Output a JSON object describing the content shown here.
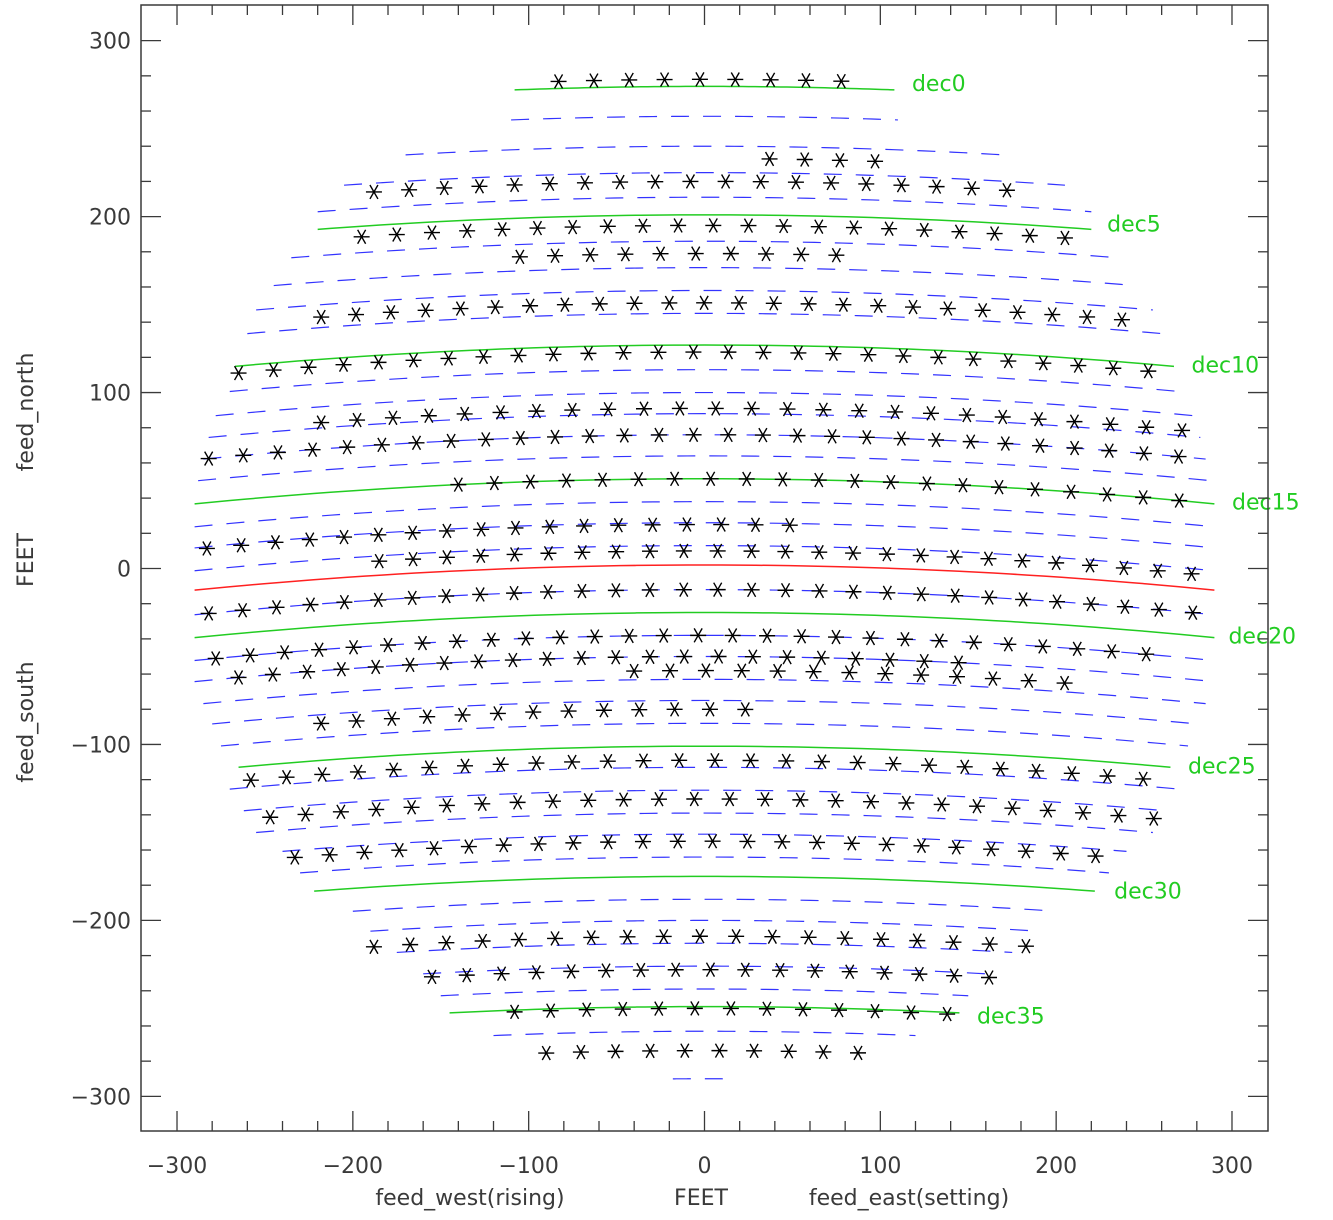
{
  "chart_data": {
    "type": "scatter",
    "xlim": [
      -320,
      320
    ],
    "ylim": [
      -320,
      320
    ],
    "x_ticks": [
      -300,
      -200,
      -100,
      0,
      100,
      200,
      300
    ],
    "y_ticks": [
      -300,
      -200,
      -100,
      0,
      100,
      200,
      300
    ],
    "x_tick_labels": [
      "−300",
      "−200",
      "−100",
      "0",
      "100",
      "200",
      "300"
    ],
    "y_tick_labels": [
      "−300",
      "−200",
      "−100",
      "0",
      "100",
      "200",
      "300"
    ],
    "xlabel": {
      "left": "feed_west(rising)",
      "center": "FEET",
      "right": "feed_east(setting)"
    },
    "ylabel": {
      "bottom": "feed_south",
      "center": "FEET",
      "top": "feed_north"
    },
    "colors": {
      "dec_curve": "#22cc22",
      "zero_curve": "#ff2020",
      "dashed_track": "#3333ff",
      "marker": "#000000",
      "axes": "#3a3a3a"
    },
    "dec_curves": [
      {
        "label": "dec0",
        "color": "#22cc22",
        "x_range": [
          -108,
          108
        ],
        "y_center": 274,
        "label_x": 118,
        "label_y": 276
      },
      {
        "label": "dec5",
        "color": "#22cc22",
        "x_range": [
          -220,
          220
        ],
        "y_center": 201,
        "label_x": 229,
        "label_y": 196
      },
      {
        "label": "dec10",
        "color": "#22cc22",
        "x_range": [
          -267,
          267
        ],
        "y_center": 127,
        "label_x": 277,
        "label_y": 116
      },
      {
        "label": "dec15",
        "color": "#22cc22",
        "x_range": [
          -290,
          290
        ],
        "y_center": 51,
        "label_x": 300,
        "label_y": 38
      },
      {
        "label": "",
        "color": "#ff2020",
        "x_range": [
          -290,
          290
        ],
        "y_center": 2,
        "label_x": null,
        "label_y": null
      },
      {
        "label": "dec20",
        "color": "#22cc22",
        "x_range": [
          -290,
          290
        ],
        "y_center": -25,
        "label_x": 298,
        "label_y": -38
      },
      {
        "label": "dec25",
        "color": "#22cc22",
        "x_range": [
          -265,
          265
        ],
        "y_center": -101,
        "label_x": 275,
        "label_y": -112
      },
      {
        "label": "dec30",
        "color": "#22cc22",
        "x_range": [
          -222,
          222
        ],
        "y_center": -175,
        "label_x": 233,
        "label_y": -183
      },
      {
        "label": "dec35",
        "color": "#22cc22",
        "x_range": [
          -145,
          145
        ],
        "y_center": -249,
        "label_x": 155,
        "label_y": -254
      }
    ],
    "curve_sag": 0.00017,
    "dashed_tracks": [
      {
        "x_range": [
          -110,
          110
        ],
        "y_center": 257
      },
      {
        "x_range": [
          -170,
          170
        ],
        "y_center": 240
      },
      {
        "x_range": [
          -205,
          205
        ],
        "y_center": 225
      },
      {
        "x_range": [
          -220,
          220
        ],
        "y_center": 211
      },
      {
        "x_range": [
          -235,
          235
        ],
        "y_center": 186
      },
      {
        "x_range": [
          -245,
          245
        ],
        "y_center": 171
      },
      {
        "x_range": [
          -255,
          255
        ],
        "y_center": 158
      },
      {
        "x_range": [
          -260,
          260
        ],
        "y_center": 145
      },
      {
        "x_range": [
          -270,
          270
        ],
        "y_center": 113
      },
      {
        "x_range": [
          -278,
          278
        ],
        "y_center": 100
      },
      {
        "x_range": [
          -282,
          282
        ],
        "y_center": 88
      },
      {
        "x_range": [
          -285,
          285
        ],
        "y_center": 76
      },
      {
        "x_range": [
          -288,
          288
        ],
        "y_center": 64
      },
      {
        "x_range": [
          -290,
          290
        ],
        "y_center": 38
      },
      {
        "x_range": [
          -290,
          290
        ],
        "y_center": 26
      },
      {
        "x_range": [
          -290,
          290
        ],
        "y_center": 13
      },
      {
        "x_range": [
          -290,
          290
        ],
        "y_center": -12
      },
      {
        "x_range": [
          -290,
          290
        ],
        "y_center": -38
      },
      {
        "x_range": [
          -290,
          290
        ],
        "y_center": -50
      },
      {
        "x_range": [
          -285,
          285
        ],
        "y_center": -63
      },
      {
        "x_range": [
          -280,
          280
        ],
        "y_center": -75
      },
      {
        "x_range": [
          -275,
          275
        ],
        "y_center": -88
      },
      {
        "x_range": [
          -270,
          270
        ],
        "y_center": -113
      },
      {
        "x_range": [
          -262,
          262
        ],
        "y_center": -126
      },
      {
        "x_range": [
          -255,
          255
        ],
        "y_center": -139
      },
      {
        "x_range": [
          -240,
          240
        ],
        "y_center": -151
      },
      {
        "x_range": [
          -230,
          230
        ],
        "y_center": -164
      },
      {
        "x_range": [
          -200,
          200
        ],
        "y_center": -188
      },
      {
        "x_range": [
          -190,
          190
        ],
        "y_center": -200
      },
      {
        "x_range": [
          -175,
          175
        ],
        "y_center": -213
      },
      {
        "x_range": [
          -160,
          160
        ],
        "y_center": -226
      },
      {
        "x_range": [
          -150,
          150
        ],
        "y_center": -239
      },
      {
        "x_range": [
          -120,
          120
        ],
        "y_center": -263
      },
      {
        "x_range": [
          -18,
          18
        ],
        "y_center": -290
      }
    ],
    "point_rows": [
      {
        "y": 278,
        "x_start": -83,
        "x_end": 78,
        "step": 20.1
      },
      {
        "y": 233,
        "x_start": 37,
        "x_end": 97,
        "step": 20
      },
      {
        "y": 220,
        "x_start": -188,
        "x_end": 172,
        "step": 20
      },
      {
        "y": 195,
        "x_start": -195,
        "x_end": 205,
        "step": 20
      },
      {
        "y": 179,
        "x_start": -105,
        "x_end": 75,
        "step": 20
      },
      {
        "y": 151,
        "x_start": -218,
        "x_end": 238,
        "step": 19.8
      },
      {
        "y": 123,
        "x_start": -265,
        "x_end": 253,
        "step": 19.9
      },
      {
        "y": 91,
        "x_start": -218,
        "x_end": 272,
        "step": 20.4
      },
      {
        "y": 76,
        "x_start": -282,
        "x_end": 270,
        "step": 19.7
      },
      {
        "y": 51,
        "x_start": -140,
        "x_end": 270,
        "step": 20.5
      },
      {
        "y": 25,
        "x_start": -283,
        "x_end": 48,
        "step": 19.5
      },
      {
        "y": 10,
        "x_start": -185,
        "x_end": 277,
        "step": 19.25
      },
      {
        "y": -12,
        "x_start": -282,
        "x_end": 278,
        "step": 19.3
      },
      {
        "y": -38,
        "x_start": -278,
        "x_end": 270,
        "step": 19.6
      },
      {
        "y": -50,
        "x_start": -265,
        "x_end": 145,
        "step": 19.5
      },
      {
        "y": -58,
        "x_start": -40,
        "x_end": 205,
        "step": 20.4
      },
      {
        "y": -80,
        "x_start": -218,
        "x_end": 23,
        "step": 20.1
      },
      {
        "y": -109,
        "x_start": -258,
        "x_end": 250,
        "step": 20.3
      },
      {
        "y": -131,
        "x_start": -247,
        "x_end": 255,
        "step": 20.1
      },
      {
        "y": -155,
        "x_start": -233,
        "x_end": 222,
        "step": 19.8
      },
      {
        "y": -209,
        "x_start": -188,
        "x_end": 183,
        "step": 20.6
      },
      {
        "y": -228,
        "x_start": -155,
        "x_end": 162,
        "step": 19.8
      },
      {
        "y": -250,
        "x_start": -108,
        "x_end": 138,
        "step": 20.5
      },
      {
        "y": -274,
        "x_start": -90,
        "x_end": 87,
        "step": 19.7
      }
    ]
  }
}
